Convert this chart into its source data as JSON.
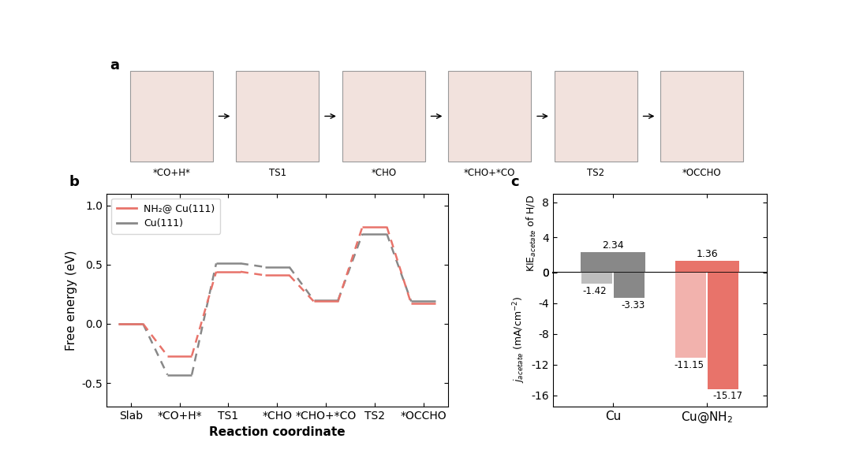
{
  "panel_b": {
    "x_labels": [
      "Slab",
      "*CO+H*",
      "TS1",
      "*CHO",
      "*CHO+*CO",
      "TS2",
      "*OCCHO"
    ],
    "nh2_cu_values": [
      0.0,
      -0.27,
      0.44,
      0.41,
      0.19,
      0.82,
      0.17
    ],
    "cu_values": [
      0.0,
      -0.43,
      0.51,
      0.48,
      0.2,
      0.76,
      0.19
    ],
    "nh2_cu_color": "#E8736A",
    "cu_color": "#888888",
    "xlabel": "Reaction coordinate",
    "ylabel": "Free energy (eV)",
    "ylim": [
      -0.7,
      1.1
    ],
    "legend_nh2": "NH₂@ Cu(111)",
    "legend_cu": "Cu(111)"
  },
  "panel_c": {
    "cu_kie": 2.34,
    "cu_j_h2o": -1.42,
    "cu_j_d2o": -3.33,
    "cunh2_kie": 1.36,
    "cunh2_j_h2o": -11.15,
    "cunh2_j_d2o": -15.17,
    "cu_color": "#888888",
    "cunh2_color": "#E8736A",
    "x_labels": [
      "Cu",
      "Cu@NH$_2$"
    ]
  },
  "top_images_labels": [
    "*CO+H*",
    "TS1",
    "*CHO",
    "*CHO+*CO",
    "TS2",
    "*OCCHO"
  ],
  "label_fontsize": 13,
  "axis_fontsize": 11,
  "tick_fontsize": 10
}
